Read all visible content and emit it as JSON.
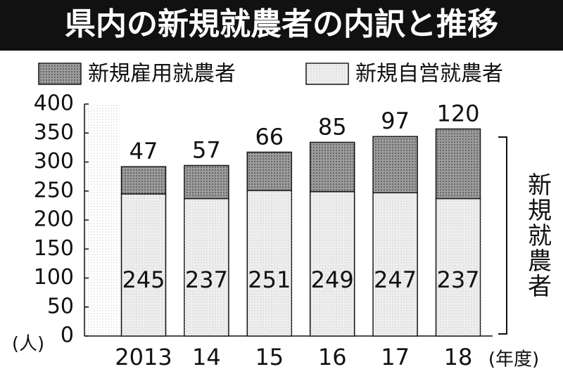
{
  "chart_data": {
    "type": "stacked_bar",
    "title": "県内の新規就農者の内訳と推移",
    "categories": [
      "2013",
      "14",
      "15",
      "16",
      "17",
      "18"
    ],
    "x_unit": "(年度)",
    "y_unit": "(人)",
    "bracket_label": "新規就農者",
    "series": [
      {
        "name": "新規自営就農者",
        "color": "#eeeeee",
        "values": [
          245,
          237,
          251,
          249,
          247,
          237
        ]
      },
      {
        "name": "新規雇用就農者",
        "color": "#9c9c9c",
        "values": [
          47,
          57,
          66,
          85,
          97,
          120
        ]
      }
    ],
    "legend_order": [
      1,
      0
    ],
    "ylim": [
      0,
      400
    ],
    "yticks": [
      0,
      50,
      100,
      150,
      200,
      250,
      300,
      350,
      400
    ],
    "grid": false
  }
}
